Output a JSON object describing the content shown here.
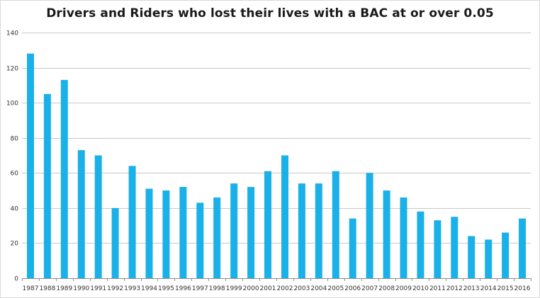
{
  "chart_data": {
    "type": "bar",
    "title": "Drivers and Riders who lost their lives with a BAC at or over 0.05",
    "xlabel": "",
    "ylabel": "",
    "ylim": [
      0,
      140
    ],
    "y_ticks": [
      0,
      20,
      40,
      60,
      80,
      100,
      120,
      140
    ],
    "grid": true,
    "legend": "none",
    "bar_color": "#1ab0e8",
    "categories": [
      "1987",
      "1988",
      "1989",
      "1990",
      "1991",
      "1992",
      "1993",
      "1994",
      "1995",
      "1996",
      "1997",
      "1998",
      "1999",
      "2000",
      "2001",
      "2002",
      "2003",
      "2004",
      "2005",
      "2006",
      "2007",
      "2008",
      "2009",
      "2010",
      "2011",
      "2012",
      "2013",
      "2014",
      "2015",
      "2016"
    ],
    "values": [
      128,
      105,
      113,
      73,
      70,
      40,
      64,
      51,
      50,
      52,
      43,
      46,
      54,
      52,
      61,
      70,
      54,
      54,
      61,
      34,
      60,
      50,
      46,
      38,
      33,
      35,
      24,
      22,
      26,
      34
    ]
  }
}
